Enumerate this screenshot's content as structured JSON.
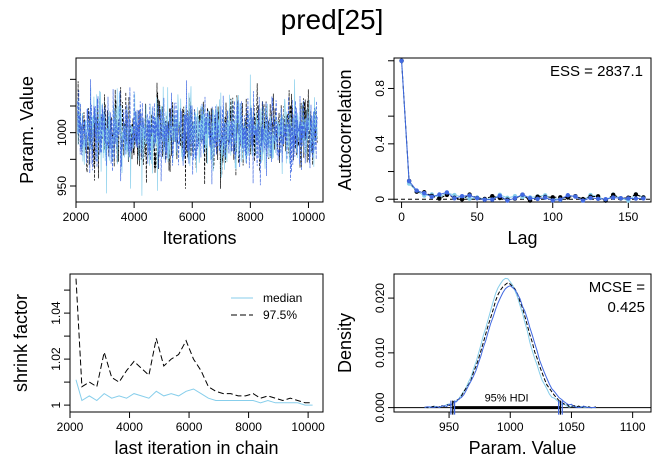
{
  "title": "pred[25]",
  "colors": {
    "chain1": "#87ceeb",
    "chain2": "#000000",
    "chain3": "#4169e1",
    "chain4": "#6a7fd8"
  },
  "chart_data": [
    {
      "type": "line",
      "name": "trace",
      "xlabel": "Iterations",
      "ylabel": "Param. Value",
      "xlim": [
        2000,
        10500
      ],
      "ylim": [
        935,
        1070
      ],
      "xticks": [
        2000,
        4000,
        6000,
        8000,
        10000
      ],
      "yticks": [
        950,
        1000
      ],
      "yticks_minor": [
        975,
        1025,
        1050
      ],
      "series": [
        {
          "chain": 1,
          "mean": 1000,
          "sd": 17
        },
        {
          "chain": 2,
          "mean": 1000,
          "sd": 17
        },
        {
          "chain": 3,
          "mean": 1000,
          "sd": 17
        }
      ]
    },
    {
      "type": "line",
      "name": "autocorrelation",
      "xlabel": "Lag",
      "ylabel": "Autocorrelation",
      "annotation": "ESS = 2837.1",
      "xlim": [
        -5,
        165
      ],
      "ylim": [
        -0.02,
        1.02
      ],
      "xticks": [
        0,
        50,
        100,
        150
      ],
      "yticks": [
        0.0,
        0.4,
        0.8
      ],
      "yticks_minor": [
        0.2,
        0.6,
        1.0
      ],
      "x": [
        0,
        5,
        10,
        15,
        20,
        25,
        30,
        35,
        40,
        45,
        50,
        55,
        60,
        65,
        70,
        75,
        80,
        85,
        90,
        95,
        100,
        105,
        110,
        115,
        120,
        125,
        130,
        135,
        140,
        145,
        150,
        155,
        160
      ],
      "values": [
        1.0,
        0.12,
        0.05,
        0.04,
        0.03,
        0.02,
        0.04,
        0.02,
        0.01,
        0.02,
        0.01,
        0.0,
        0.01,
        0.02,
        0.0,
        0.01,
        0.02,
        0.0,
        0.01,
        0.02,
        0.0,
        0.01,
        0.02,
        0.01,
        0.0,
        0.02,
        0.01,
        0.0,
        0.02,
        0.01,
        0.0,
        0.02,
        0.01
      ]
    },
    {
      "type": "line",
      "name": "shrink-factor",
      "xlabel": "last iteration in chain",
      "ylabel": "shrink factor",
      "xlim": [
        2000,
        10500
      ],
      "ylim": [
        0.997,
        1.057
      ],
      "xticks": [
        2000,
        4000,
        6000,
        8000,
        10000
      ],
      "yticks": [
        1.0,
        1.02,
        1.04
      ],
      "yticks_minor": [
        1.01,
        1.03,
        1.05
      ],
      "legend_position": "top-right",
      "x": [
        2200,
        2400,
        2650,
        2900,
        3150,
        3400,
        3650,
        3900,
        4150,
        4400,
        4650,
        4900,
        5150,
        5400,
        5650,
        5900,
        6150,
        6400,
        6650,
        6900,
        7150,
        7400,
        7650,
        7900,
        8150,
        8400,
        8650,
        8900,
        9150,
        9400,
        9650,
        9900,
        10150
      ],
      "series": [
        {
          "name": "median",
          "values": [
            1.011,
            1.002,
            1.004,
            1.002,
            1.005,
            1.003,
            1.004,
            1.003,
            1.005,
            1.004,
            1.003,
            1.006,
            1.004,
            1.005,
            1.004,
            1.006,
            1.007,
            1.005,
            1.003,
            1.002,
            1.002,
            1.002,
            1.002,
            1.002,
            1.002,
            1.001,
            1.002,
            1.001,
            1.001,
            1.001,
            1.001,
            1.0,
            1.0
          ]
        },
        {
          "name": "97.5%",
          "values": [
            1.055,
            1.008,
            1.01,
            1.008,
            1.023,
            1.012,
            1.01,
            1.015,
            1.019,
            1.016,
            1.013,
            1.029,
            1.017,
            1.02,
            1.022,
            1.028,
            1.02,
            1.015,
            1.008,
            1.006,
            1.005,
            1.005,
            1.004,
            1.004,
            1.005,
            1.003,
            1.004,
            1.003,
            1.002,
            1.003,
            1.002,
            1.001,
            1.001
          ]
        }
      ]
    },
    {
      "type": "line",
      "name": "density",
      "xlabel": "Param. Value",
      "ylabel": "Density",
      "annotation_label": "MCSE =",
      "annotation_value": "0.425",
      "hdi_label": "95% HDI",
      "hdi": [
        953,
        1041
      ],
      "xlim": [
        905,
        1115
      ],
      "ylim": [
        -0.0008,
        0.0244
      ],
      "xticks": [
        950,
        1000,
        1050,
        1100
      ],
      "yticks": [
        0.0,
        0.01,
        0.02
      ],
      "yticks_labels": [
        "0.000",
        "0.010",
        "0.020"
      ],
      "mean": 998,
      "sd": 17.5
    }
  ]
}
